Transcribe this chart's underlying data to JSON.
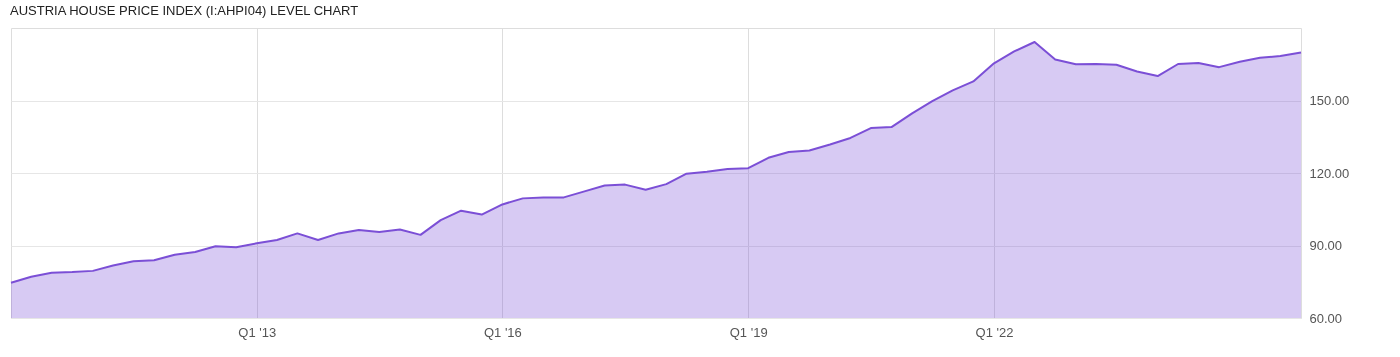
{
  "chart_data": {
    "type": "area",
    "title": "AUSTRIA HOUSE PRICE INDEX (I:AHPI04) LEVEL CHART",
    "x": [
      "2010-01",
      "2010-04",
      "2010-07",
      "2010-10",
      "2011-01",
      "2011-04",
      "2011-07",
      "2011-10",
      "2012-01",
      "2012-04",
      "2012-07",
      "2012-10",
      "2013-01",
      "2013-04",
      "2013-07",
      "2013-10",
      "2014-01",
      "2014-04",
      "2014-07",
      "2014-10",
      "2015-01",
      "2015-04",
      "2015-07",
      "2015-10",
      "2016-01",
      "2016-04",
      "2016-07",
      "2016-10",
      "2017-01",
      "2017-04",
      "2017-07",
      "2017-10",
      "2018-01",
      "2018-04",
      "2018-07",
      "2018-10",
      "2019-01",
      "2019-04",
      "2019-07",
      "2019-10",
      "2020-01",
      "2020-04",
      "2020-07",
      "2020-10",
      "2021-01",
      "2021-04",
      "2021-07",
      "2021-10",
      "2022-01",
      "2022-04",
      "2022-07",
      "2022-10",
      "2023-01",
      "2023-04",
      "2023-07",
      "2023-10",
      "2024-01",
      "2024-04",
      "2024-07",
      "2024-10",
      "2025-01",
      "2025-04",
      "2025-07",
      "2025-10"
    ],
    "series": [
      {
        "color": "#7b4fd6",
        "values": [
          74.6,
          77.1,
          78.7,
          79.0,
          79.5,
          81.7,
          83.5,
          83.9,
          86.2,
          87.3,
          89.7,
          89.3,
          90.9,
          92.3,
          95.0,
          92.3,
          95.0,
          96.4,
          95.6,
          96.6,
          94.4,
          100.5,
          104.4,
          102.8,
          107.0,
          109.5,
          109.9,
          109.9,
          112.4,
          114.8,
          115.2,
          113.1,
          115.4,
          119.7,
          120.5,
          121.7,
          122.0,
          126.3,
          128.7,
          129.3,
          131.8,
          134.5,
          138.6,
          139.0,
          144.7,
          149.7,
          154.2,
          157.9,
          165.4,
          170.3,
          174.2,
          167.0,
          165.0,
          165.1,
          164.8,
          162.0,
          160.1,
          165.1,
          165.5,
          163.8,
          166.0,
          167.7,
          168.4,
          169.9
        ]
      }
    ],
    "xlim": [
      "2010-01",
      "2025-10"
    ],
    "xticks": [
      {
        "value": "2013-01",
        "label": "Q1 '13"
      },
      {
        "value": "2016-01",
        "label": "Q1 '16"
      },
      {
        "value": "2019-01",
        "label": "Q1 '19"
      },
      {
        "value": "2022-01",
        "label": "Q1 '22"
      }
    ],
    "ylim": [
      60,
      180
    ],
    "yticks": [
      {
        "value": 60,
        "label": "60.00"
      },
      {
        "value": 90,
        "label": "90.00"
      },
      {
        "value": 120,
        "label": "120.00"
      },
      {
        "value": 150,
        "label": "150.00"
      }
    ],
    "grid": true
  }
}
